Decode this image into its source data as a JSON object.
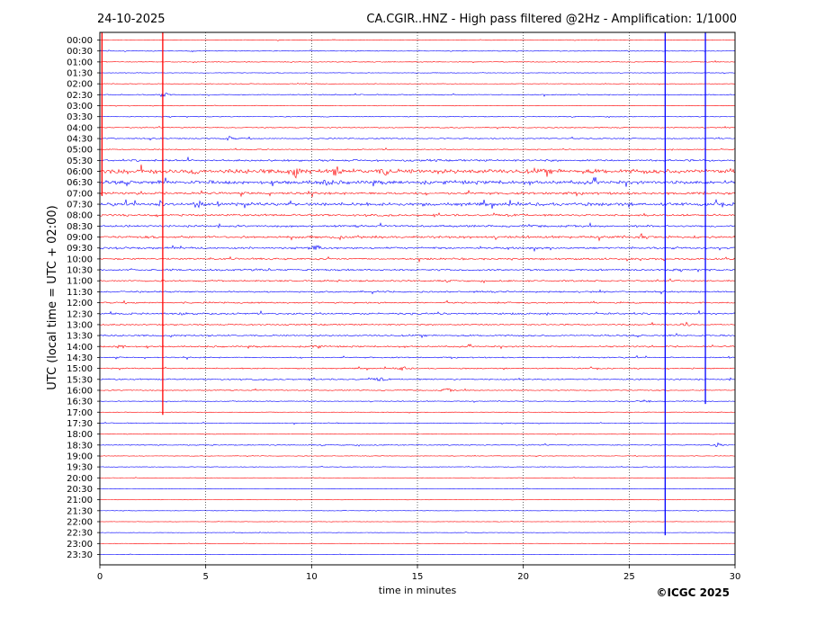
{
  "header": {
    "date": "24-10-2025",
    "title": "CA.CGIR..HNZ - High pass filtered @2Hz - Amplification: 1/1000"
  },
  "footer": {
    "copyright": "©ICGC 2025"
  },
  "chart_data": {
    "type": "line",
    "title": "CA.CGIR..HNZ - High pass filtered @2Hz - Amplification: 1/1000",
    "xlabel": "time in minutes",
    "ylabel": "UTC (local time = UTC + 02:00)",
    "xlim": [
      0,
      30
    ],
    "x_ticks": [
      0,
      5,
      10,
      15,
      20,
      25,
      30
    ],
    "grid": "vertical dotted lines every 5 minutes",
    "row_labels": [
      "00:00",
      "00:30",
      "01:00",
      "01:30",
      "02:00",
      "02:30",
      "03:00",
      "03:30",
      "04:00",
      "04:30",
      "05:00",
      "05:30",
      "06:00",
      "06:30",
      "07:00",
      "07:30",
      "08:00",
      "08:30",
      "09:00",
      "09:30",
      "10:00",
      "10:30",
      "11:00",
      "11:30",
      "12:00",
      "12:30",
      "13:00",
      "13:30",
      "14:00",
      "14:30",
      "15:00",
      "15:30",
      "16:00",
      "16:30",
      "17:00",
      "17:30",
      "18:00",
      "18:30",
      "19:00",
      "19:30",
      "20:00",
      "20:30",
      "21:00",
      "21:30",
      "22:00",
      "22:30",
      "23:00",
      "23:30"
    ],
    "row_colors": [
      "#ff0000",
      "#0000ff"
    ],
    "row_noise": [
      0.3,
      0.4,
      0.4,
      0.3,
      0.3,
      0.5,
      0.3,
      0.4,
      0.5,
      0.6,
      0.5,
      1.0,
      2.2,
      1.8,
      1.2,
      1.6,
      1.0,
      1.0,
      1.2,
      1.0,
      0.9,
      0.9,
      0.8,
      0.8,
      0.8,
      0.9,
      0.7,
      0.8,
      0.8,
      0.6,
      0.6,
      0.7,
      0.5,
      0.4,
      0.3,
      0.4,
      0.3,
      0.5,
      0.3,
      0.3,
      0.2,
      0.2,
      0.2,
      0.2,
      0.2,
      0.2,
      0.2,
      0.2
    ],
    "events": [
      {
        "row": 5,
        "x": 3.0,
        "amp": 3
      },
      {
        "row": 9,
        "x": 6.1,
        "amp": 2.5
      },
      {
        "row": 12,
        "x": 9.2,
        "amp": 5
      },
      {
        "row": 12,
        "x": 11.2,
        "amp": 4
      },
      {
        "row": 12,
        "x": 13.5,
        "amp": 4
      },
      {
        "row": 12,
        "x": 4.5,
        "amp": 3.5
      },
      {
        "row": 13,
        "x": 10.7,
        "amp": 4
      },
      {
        "row": 15,
        "x": 2.8,
        "amp": 3.5
      },
      {
        "row": 15,
        "x": 4.6,
        "amp": 4
      },
      {
        "row": 18,
        "x": 11.3,
        "amp": 3
      },
      {
        "row": 18,
        "x": 25.6,
        "amp": 2.5
      },
      {
        "row": 19,
        "x": 10.2,
        "amp": 3
      },
      {
        "row": 25,
        "x": 4.0,
        "amp": 2.5
      },
      {
        "row": 26,
        "x": 27.7,
        "amp": 2.5
      },
      {
        "row": 28,
        "x": 1.0,
        "amp": 2.5
      },
      {
        "row": 28,
        "x": 10.2,
        "amp": 2.5
      },
      {
        "row": 30,
        "x": 14.3,
        "amp": 2.5
      },
      {
        "row": 31,
        "x": 13.2,
        "amp": 2.5
      },
      {
        "row": 32,
        "x": 16.4,
        "amp": 2.5
      },
      {
        "row": 33,
        "x": 25.8,
        "amp": 2
      },
      {
        "row": 37,
        "x": 29.2,
        "amp": 2.5
      }
    ],
    "vertical_spikes": [
      {
        "x": 0.1,
        "from_row": 0,
        "to_row": 14,
        "color": "#ff0000"
      },
      {
        "x": 2.97,
        "from_row": 0,
        "to_row": 34,
        "color": "#ff0000"
      },
      {
        "x": 26.7,
        "from_row": 0,
        "to_row": 45,
        "color": "#0000ff"
      },
      {
        "x": 28.6,
        "from_row": 0,
        "to_row": 33,
        "color": "#0000ff"
      }
    ]
  }
}
